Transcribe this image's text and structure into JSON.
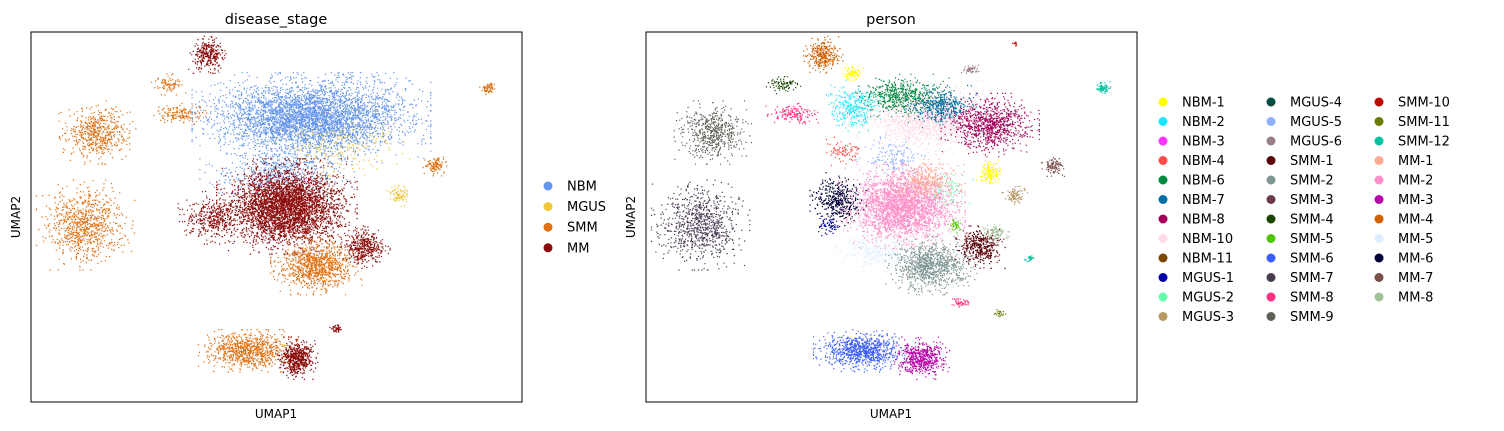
{
  "chart_data": [
    {
      "type": "scatter",
      "title": "disease_stage",
      "xlabel": "UMAP1",
      "ylabel": "UMAP2",
      "ticks": "none",
      "grid": false,
      "legend_position": "right",
      "categories": [
        "NBM",
        "MGUS",
        "SMM",
        "MM"
      ],
      "colors": {
        "NBM": "#6495ED",
        "MGUS": "#F0C63C",
        "SMM": "#E07012",
        "MM": "#8B0A0A"
      },
      "clusters": [
        {
          "category": "MM",
          "x": 0.36,
          "y": 0.94,
          "sx": 0.028,
          "sy": 0.035,
          "n": 300
        },
        {
          "category": "SMM",
          "x": 0.135,
          "y": 0.73,
          "sx": 0.055,
          "sy": 0.06,
          "n": 550
        },
        {
          "category": "SMM",
          "x": 0.11,
          "y": 0.48,
          "sx": 0.07,
          "sy": 0.085,
          "n": 850
        },
        {
          "category": "SMM",
          "x": 0.3,
          "y": 0.78,
          "sx": 0.04,
          "sy": 0.02,
          "n": 150
        },
        {
          "category": "SMM",
          "x": 0.28,
          "y": 0.86,
          "sx": 0.025,
          "sy": 0.02,
          "n": 80
        },
        {
          "category": "NBM",
          "x": 0.57,
          "y": 0.77,
          "sx": 0.17,
          "sy": 0.085,
          "n": 4200
        },
        {
          "category": "NBM",
          "x": 0.5,
          "y": 0.62,
          "sx": 0.11,
          "sy": 0.05,
          "n": 500
        },
        {
          "category": "MGUS",
          "x": 0.63,
          "y": 0.69,
          "sx": 0.1,
          "sy": 0.07,
          "n": 200
        },
        {
          "category": "MGUS",
          "x": 0.75,
          "y": 0.56,
          "sx": 0.018,
          "sy": 0.02,
          "n": 90
        },
        {
          "category": "MM",
          "x": 0.52,
          "y": 0.53,
          "sx": 0.1,
          "sy": 0.09,
          "n": 3800
        },
        {
          "category": "MM",
          "x": 0.37,
          "y": 0.5,
          "sx": 0.05,
          "sy": 0.05,
          "n": 400
        },
        {
          "category": "SMM",
          "x": 0.58,
          "y": 0.37,
          "sx": 0.065,
          "sy": 0.055,
          "n": 1000
        },
        {
          "category": "MM",
          "x": 0.68,
          "y": 0.42,
          "sx": 0.035,
          "sy": 0.04,
          "n": 400
        },
        {
          "category": "SMM",
          "x": 0.82,
          "y": 0.64,
          "sx": 0.018,
          "sy": 0.02,
          "n": 100
        },
        {
          "category": "SMM",
          "x": 0.93,
          "y": 0.85,
          "sx": 0.012,
          "sy": 0.012,
          "n": 70
        },
        {
          "category": "SMM",
          "x": 0.44,
          "y": 0.14,
          "sx": 0.07,
          "sy": 0.04,
          "n": 850
        },
        {
          "category": "MM",
          "x": 0.54,
          "y": 0.12,
          "sx": 0.03,
          "sy": 0.04,
          "n": 550
        },
        {
          "category": "MM",
          "x": 0.62,
          "y": 0.2,
          "sx": 0.01,
          "sy": 0.01,
          "n": 40
        }
      ]
    },
    {
      "type": "scatter",
      "title": "person",
      "xlabel": "UMAP1",
      "ylabel": "UMAP2",
      "ticks": "none",
      "grid": false,
      "legend_position": "right",
      "categories": [
        "NBM-1",
        "NBM-2",
        "NBM-3",
        "NBM-4",
        "NBM-6",
        "NBM-7",
        "NBM-8",
        "NBM-10",
        "NBM-11",
        "MGUS-1",
        "MGUS-2",
        "MGUS-3",
        "MGUS-4",
        "MGUS-5",
        "MGUS-6",
        "SMM-1",
        "SMM-2",
        "SMM-3",
        "SMM-4",
        "SMM-5",
        "SMM-6",
        "SMM-7",
        "SMM-8",
        "SMM-9",
        "SMM-10",
        "SMM-11",
        "SMM-12",
        "MM-1",
        "MM-2",
        "MM-3",
        "MM-4",
        "MM-5",
        "MM-6",
        "MM-7",
        "MM-8"
      ],
      "colors": {
        "NBM-1": "#FFFF00",
        "NBM-2": "#1CE6FF",
        "NBM-3": "#FF34FF",
        "NBM-4": "#FF4A46",
        "NBM-6": "#008941",
        "NBM-7": "#006FA6",
        "NBM-8": "#A30059",
        "NBM-10": "#FFDBE5",
        "NBM-11": "#7A4900",
        "MGUS-1": "#0000A6",
        "MGUS-2": "#63FFAC",
        "MGUS-3": "#B79762",
        "MGUS-4": "#004D43",
        "MGUS-5": "#8FB0FF",
        "MGUS-6": "#997D87",
        "SMM-1": "#5A0007",
        "SMM-2": "#809693",
        "SMM-3": "#6A3A4C",
        "SMM-4": "#1B4400",
        "SMM-5": "#4FC601",
        "SMM-6": "#3B5DFF",
        "SMM-7": "#4A3B53",
        "SMM-8": "#FF2F80",
        "SMM-9": "#61615A",
        "SMM-10": "#BA0900",
        "SMM-11": "#6B7900",
        "SMM-12": "#00C2A0",
        "MM-1": "#FFAA92",
        "MM-2": "#FF90C9",
        "MM-3": "#B903AA",
        "MM-4": "#D16100",
        "MM-5": "#DDEFFF",
        "MM-6": "#000035",
        "MM-7": "#7B4F4B",
        "MM-8": "#A1C299"
      },
      "clusters": [
        {
          "category": "MM-4",
          "x": 0.36,
          "y": 0.94,
          "sx": 0.028,
          "sy": 0.035,
          "n": 300
        },
        {
          "category": "SMM-9",
          "x": 0.135,
          "y": 0.73,
          "sx": 0.055,
          "sy": 0.06,
          "n": 550
        },
        {
          "category": "SMM-7",
          "x": 0.11,
          "y": 0.48,
          "sx": 0.07,
          "sy": 0.085,
          "n": 850
        },
        {
          "category": "SMM-8",
          "x": 0.3,
          "y": 0.78,
          "sx": 0.04,
          "sy": 0.02,
          "n": 150
        },
        {
          "category": "SMM-4",
          "x": 0.28,
          "y": 0.86,
          "sx": 0.025,
          "sy": 0.02,
          "n": 80
        },
        {
          "category": "NBM-10",
          "x": 0.57,
          "y": 0.77,
          "sx": 0.1,
          "sy": 0.07,
          "n": 1500
        },
        {
          "category": "NBM-6",
          "x": 0.52,
          "y": 0.83,
          "sx": 0.07,
          "sy": 0.04,
          "n": 500
        },
        {
          "category": "NBM-7",
          "x": 0.6,
          "y": 0.8,
          "sx": 0.05,
          "sy": 0.04,
          "n": 400
        },
        {
          "category": "NBM-8",
          "x": 0.7,
          "y": 0.75,
          "sx": 0.07,
          "sy": 0.06,
          "n": 900
        },
        {
          "category": "NBM-2",
          "x": 0.42,
          "y": 0.8,
          "sx": 0.04,
          "sy": 0.05,
          "n": 300
        },
        {
          "category": "NBM-1",
          "x": 0.42,
          "y": 0.89,
          "sx": 0.015,
          "sy": 0.015,
          "n": 90
        },
        {
          "category": "NBM-1",
          "x": 0.7,
          "y": 0.62,
          "sx": 0.02,
          "sy": 0.025,
          "n": 150
        },
        {
          "category": "NBM-4",
          "x": 0.4,
          "y": 0.68,
          "sx": 0.03,
          "sy": 0.03,
          "n": 90
        },
        {
          "category": "MGUS-5",
          "x": 0.5,
          "y": 0.66,
          "sx": 0.05,
          "sy": 0.04,
          "n": 150
        },
        {
          "category": "MGUS-2",
          "x": 0.61,
          "y": 0.57,
          "sx": 0.04,
          "sy": 0.04,
          "n": 100
        },
        {
          "category": "MGUS-3",
          "x": 0.75,
          "y": 0.56,
          "sx": 0.018,
          "sy": 0.02,
          "n": 90
        },
        {
          "category": "MGUS-6",
          "x": 0.66,
          "y": 0.9,
          "sx": 0.015,
          "sy": 0.01,
          "n": 50
        },
        {
          "category": "MM-2",
          "x": 0.52,
          "y": 0.53,
          "sx": 0.09,
          "sy": 0.08,
          "n": 2800
        },
        {
          "category": "MM-1",
          "x": 0.57,
          "y": 0.6,
          "sx": 0.05,
          "sy": 0.04,
          "n": 300
        },
        {
          "category": "MM-6",
          "x": 0.39,
          "y": 0.55,
          "sx": 0.04,
          "sy": 0.05,
          "n": 400
        },
        {
          "category": "MGUS-1",
          "x": 0.37,
          "y": 0.48,
          "sx": 0.02,
          "sy": 0.02,
          "n": 60
        },
        {
          "category": "MM-5",
          "x": 0.47,
          "y": 0.41,
          "sx": 0.06,
          "sy": 0.04,
          "n": 300
        },
        {
          "category": "SMM-2",
          "x": 0.58,
          "y": 0.37,
          "sx": 0.065,
          "sy": 0.055,
          "n": 1000
        },
        {
          "category": "SMM-1",
          "x": 0.68,
          "y": 0.42,
          "sx": 0.035,
          "sy": 0.04,
          "n": 400
        },
        {
          "category": "MM-8",
          "x": 0.71,
          "y": 0.46,
          "sx": 0.02,
          "sy": 0.02,
          "n": 80
        },
        {
          "category": "SMM-5",
          "x": 0.63,
          "y": 0.48,
          "sx": 0.012,
          "sy": 0.015,
          "n": 40
        },
        {
          "category": "MM-7",
          "x": 0.83,
          "y": 0.64,
          "sx": 0.018,
          "sy": 0.02,
          "n": 100
        },
        {
          "category": "SMM-12",
          "x": 0.93,
          "y": 0.85,
          "sx": 0.012,
          "sy": 0.012,
          "n": 70
        },
        {
          "category": "SMM-12",
          "x": 0.78,
          "y": 0.39,
          "sx": 0.008,
          "sy": 0.008,
          "n": 25
        },
        {
          "category": "SMM-8",
          "x": 0.64,
          "y": 0.27,
          "sx": 0.015,
          "sy": 0.01,
          "n": 50
        },
        {
          "category": "SMM-11",
          "x": 0.72,
          "y": 0.24,
          "sx": 0.008,
          "sy": 0.008,
          "n": 25
        },
        {
          "category": "SMM-10",
          "x": 0.75,
          "y": 0.97,
          "sx": 0.004,
          "sy": 0.006,
          "n": 10
        },
        {
          "category": "SMM-6",
          "x": 0.44,
          "y": 0.14,
          "sx": 0.07,
          "sy": 0.04,
          "n": 850
        },
        {
          "category": "MM-3",
          "x": 0.56,
          "y": 0.12,
          "sx": 0.04,
          "sy": 0.04,
          "n": 550
        }
      ]
    }
  ]
}
